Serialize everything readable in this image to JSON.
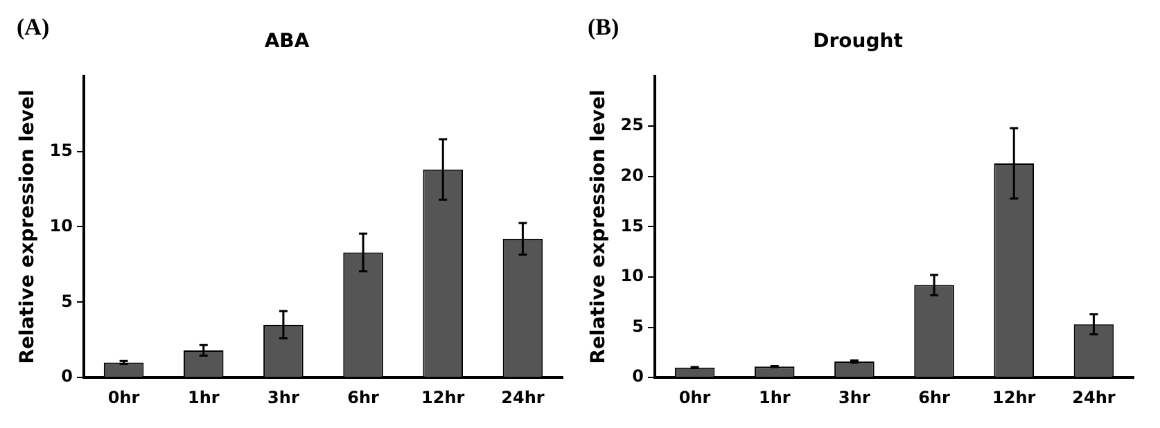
{
  "chart_data": [
    {
      "type": "bar",
      "title": "ABA",
      "ylabel": "Relative expression level",
      "annotations": [
        "(A)"
      ],
      "categories": [
        "0hr",
        "1hr",
        "3hr",
        "6hr",
        "12hr",
        "24hr"
      ],
      "values": [
        1.0,
        1.8,
        3.5,
        8.3,
        13.8,
        9.2
      ],
      "errors": [
        0.1,
        0.35,
        0.9,
        1.25,
        2.0,
        1.05
      ],
      "color": "#555555",
      "ylim": [
        0,
        20
      ],
      "yticks": [
        0,
        5,
        10,
        15
      ],
      "grid": false,
      "legend": false
    },
    {
      "type": "bar",
      "title": "Drought",
      "ylabel": "Relative expression level",
      "annotations": [
        "(B)"
      ],
      "categories": [
        "0hr",
        "1hr",
        "3hr",
        "6hr",
        "12hr",
        "24hr"
      ],
      "values": [
        1.0,
        1.1,
        1.6,
        9.2,
        21.3,
        5.3
      ],
      "errors": [
        0.05,
        0.05,
        0.1,
        1.0,
        3.5,
        1.0
      ],
      "color": "#555555",
      "ylim": [
        0,
        30
      ],
      "yticks": [
        0,
        5,
        10,
        15,
        20,
        25
      ],
      "grid": false,
      "legend": false
    }
  ]
}
